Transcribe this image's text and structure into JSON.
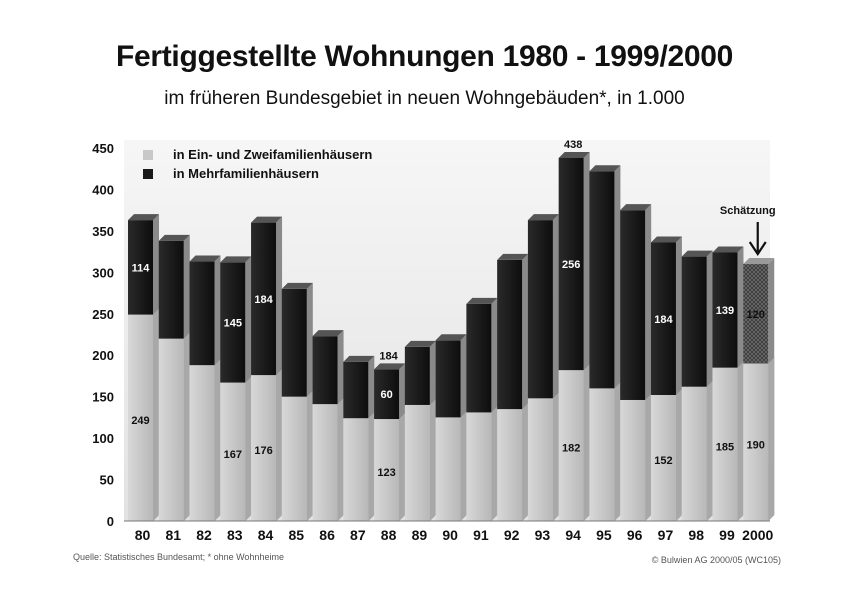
{
  "title": "Fertiggestellte Wohnungen 1980 - 1999/2000",
  "subtitle": "im früheren Bundesgebiet in neuen Wohngebäuden*, in 1.000",
  "source": "Quelle: Statistisches Bundesamt; * ohne Wohnheime",
  "copyright": "© Bulwien AG 2000/05 (WC105)",
  "annotation": "Schätzung",
  "colors": {
    "ein": "#c8c8c8",
    "mehr": "#1a1a1a",
    "estimate": "#6e6e6e",
    "background": "#ececec"
  },
  "chart_data": {
    "type": "bar",
    "stacked": true,
    "categories": [
      "80",
      "81",
      "82",
      "83",
      "84",
      "85",
      "86",
      "87",
      "88",
      "89",
      "90",
      "91",
      "92",
      "93",
      "94",
      "95",
      "96",
      "97",
      "98",
      "99",
      "2000"
    ],
    "series": [
      {
        "name": "in Ein- und Zweifamilienhäusern",
        "values": [
          249,
          220,
          188,
          167,
          176,
          150,
          141,
          124,
          123,
          140,
          125,
          131,
          135,
          148,
          182,
          160,
          146,
          152,
          162,
          185,
          190
        ]
      },
      {
        "name": "in Mehrfamilienhäusern",
        "values": [
          114,
          118,
          125,
          145,
          184,
          130,
          82,
          68,
          60,
          70,
          93,
          131,
          180,
          215,
          256,
          262,
          229,
          184,
          157,
          139,
          120
        ]
      }
    ],
    "totals_labeled": {
      "94": 438,
      "88": 184
    },
    "value_labels": [
      {
        "category": "80",
        "series": 0,
        "text": "249"
      },
      {
        "category": "80",
        "series": 1,
        "text": "114"
      },
      {
        "category": "83",
        "series": 0,
        "text": "167"
      },
      {
        "category": "83",
        "series": 1,
        "text": "145"
      },
      {
        "category": "84",
        "series": 0,
        "text": "176"
      },
      {
        "category": "84",
        "series": 1,
        "text": "184"
      },
      {
        "category": "88",
        "series": 0,
        "text": "123"
      },
      {
        "category": "88",
        "series": 1,
        "text": "60"
      },
      {
        "category": "94",
        "series": 0,
        "text": "182"
      },
      {
        "category": "94",
        "series": 1,
        "text": "256"
      },
      {
        "category": "97",
        "series": 0,
        "text": "152"
      },
      {
        "category": "97",
        "series": 1,
        "text": "184"
      },
      {
        "category": "99",
        "series": 0,
        "text": "185"
      },
      {
        "category": "99",
        "series": 1,
        "text": "139"
      },
      {
        "category": "2000",
        "series": 0,
        "text": "190"
      },
      {
        "category": "2000",
        "series": 1,
        "text": "120"
      }
    ],
    "estimate_category": "2000",
    "yticks": [
      0,
      50,
      100,
      150,
      200,
      250,
      300,
      350,
      400,
      450
    ],
    "ylim": [
      0,
      450
    ],
    "legend_position": "top-left",
    "grid": false
  }
}
